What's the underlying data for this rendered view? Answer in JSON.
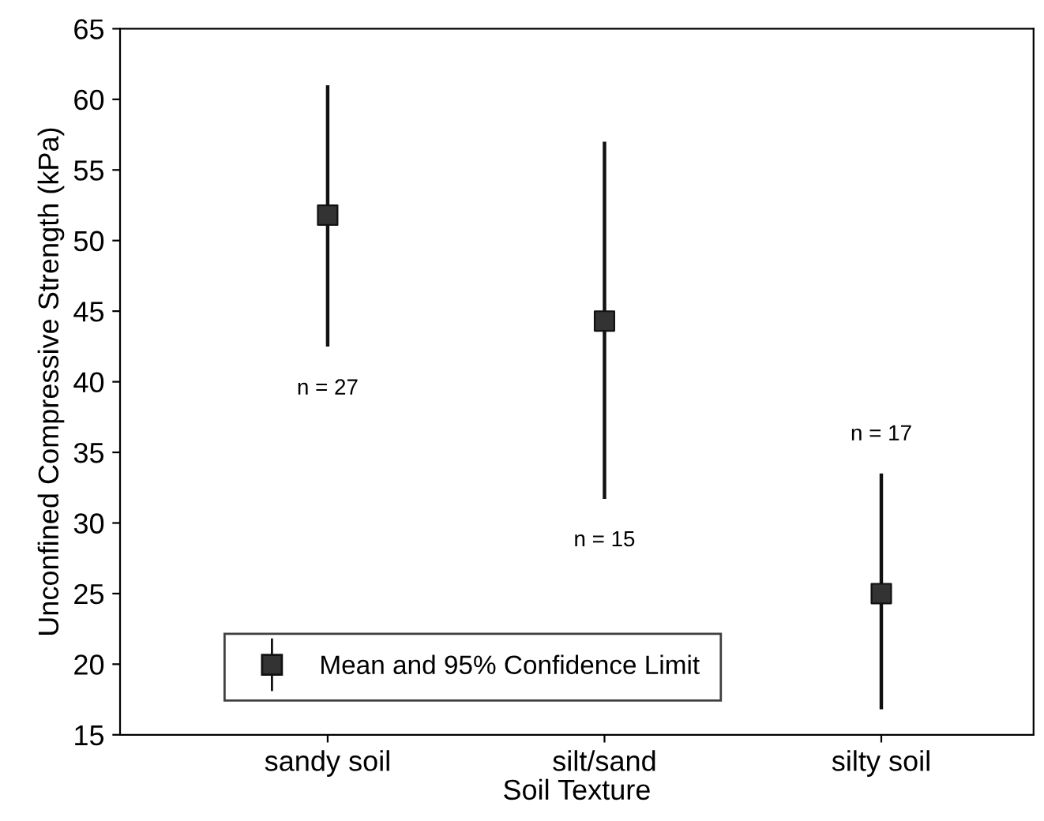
{
  "chart_data": {
    "type": "scatter",
    "xlabel": "Soil Texture",
    "ylabel": "Unconfined Compressive Strength (kPa)",
    "categories": [
      "sandy soil",
      "silt/sand",
      "silty soil"
    ],
    "series": [
      {
        "name": "Mean and 95% Confidence Limit",
        "color": "#333333",
        "values": [
          51.8,
          44.3,
          25.0
        ],
        "errors": [
          [
            42.5,
            61.0
          ],
          [
            31.7,
            57.0
          ],
          [
            16.8,
            33.5
          ]
        ]
      }
    ],
    "ylim": [
      15,
      65
    ],
    "yticks": [
      15,
      20,
      25,
      30,
      35,
      40,
      45,
      50,
      55,
      60,
      65
    ],
    "annotations": [
      "n = 27",
      "n = 15",
      "n = 17"
    ],
    "marker": "square",
    "legend": "bottom left",
    "grid": false
  }
}
